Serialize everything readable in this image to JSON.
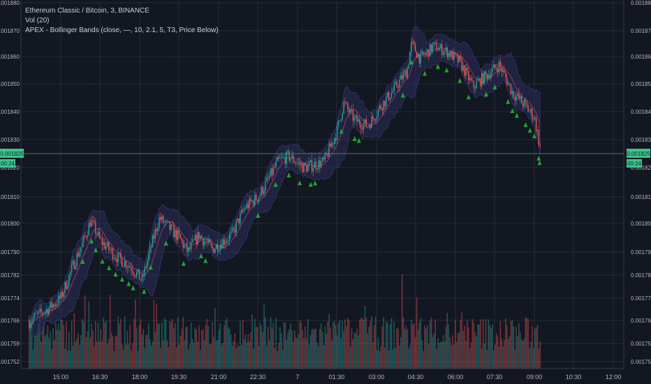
{
  "legend": {
    "symbol": "Ethereum Classic / Bitcoin, 3, BINANCE",
    "volume": "Vol (20)",
    "indicator": "APEX - Bollinger Bands (close, —, 10, 2.1, 5, T3, Price Below)"
  },
  "colors": {
    "background": "#131722",
    "grid": "#262b38",
    "axis_text": "#b2b5be",
    "up": "#26a69a",
    "down": "#ef5350",
    "bb_fill": "#2a2e5a",
    "basis": "#e0407a",
    "signal": "#1fa531",
    "price_tag": "#3ec28f"
  },
  "chart_data": {
    "type": "candlestick",
    "title": "Ethereum Classic / Bitcoin, 3, BINANCE",
    "y_ticks": [
      "0.001752",
      "0.001759",
      "0.001766",
      "0.001774",
      "0.001782",
      "0.001790",
      "0.001800",
      "0.001810",
      "0.001820",
      "0.001830",
      "0.001840",
      "0.001850",
      "0.001860",
      "0.001870",
      "0.001880"
    ],
    "x_ticks": [
      "15:00",
      "16:30",
      "18:00",
      "19:30",
      "21:00",
      "22:30",
      "7",
      "01:30",
      "03:00",
      "04:30",
      "06:00",
      "07:30",
      "09:00",
      "10:30",
      "12:00"
    ],
    "current_price": "0.001825",
    "countdown": "00:24",
    "price_path": [
      [
        "13:48",
        0.001766
      ],
      [
        "14:30",
        0.00177
      ],
      [
        "15:00",
        0.001774
      ],
      [
        "15:30",
        0.001786
      ],
      [
        "15:55",
        0.001795
      ],
      [
        "16:08",
        0.001801
      ],
      [
        "16:30",
        0.001794
      ],
      [
        "17:10",
        0.001788
      ],
      [
        "17:40",
        0.001785
      ],
      [
        "18:05",
        0.00178
      ],
      [
        "18:30",
        0.001794
      ],
      [
        "18:45",
        0.001802
      ],
      [
        "19:10",
        0.001798
      ],
      [
        "19:30",
        0.001795
      ],
      [
        "19:50",
        0.00179
      ],
      [
        "20:15",
        0.001796
      ],
      [
        "20:45",
        0.001791
      ],
      [
        "21:30",
        0.001796
      ],
      [
        "22:00",
        0.001806
      ],
      [
        "22:30",
        0.00181
      ],
      [
        "22:50",
        0.001815
      ],
      [
        "23:15",
        0.001822
      ],
      [
        "23:40",
        0.001824
      ],
      [
        "00:15",
        0.00182
      ],
      [
        "01:00",
        0.001822
      ],
      [
        "01:30",
        0.001833
      ],
      [
        "01:45",
        0.001843
      ],
      [
        "02:10",
        0.001837
      ],
      [
        "02:40",
        0.001835
      ],
      [
        "03:10",
        0.001842
      ],
      [
        "03:40",
        0.001848
      ],
      [
        "04:10",
        0.001855
      ],
      [
        "04:20",
        0.001865
      ],
      [
        "04:40",
        0.001859
      ],
      [
        "05:10",
        0.001864
      ],
      [
        "05:40",
        0.001862
      ],
      [
        "06:10",
        0.001858
      ],
      [
        "06:40",
        0.001849
      ],
      [
        "07:10",
        0.001853
      ],
      [
        "07:40",
        0.001857
      ],
      [
        "08:10",
        0.001847
      ],
      [
        "08:40",
        0.001842
      ],
      [
        "09:00",
        0.001838
      ],
      [
        "09:10",
        0.00183
      ],
      [
        "09:15",
        0.001826
      ]
    ],
    "signals": [
      "15:50",
      "16:10",
      "16:20",
      "16:35",
      "16:50",
      "17:05",
      "17:20",
      "17:35",
      "17:45",
      "18:10",
      "18:25",
      "19:00",
      "19:40",
      "20:20",
      "20:30",
      "22:30",
      "23:10",
      "23:40",
      "00:05",
      "00:30",
      "00:40",
      "01:40",
      "02:10",
      "02:20",
      "04:00",
      "04:20",
      "04:50",
      "05:20",
      "05:40",
      "06:10",
      "06:30",
      "07:10",
      "07:30",
      "08:00",
      "08:10",
      "08:20",
      "08:40",
      "08:50",
      "09:00",
      "09:10",
      "09:12"
    ]
  }
}
